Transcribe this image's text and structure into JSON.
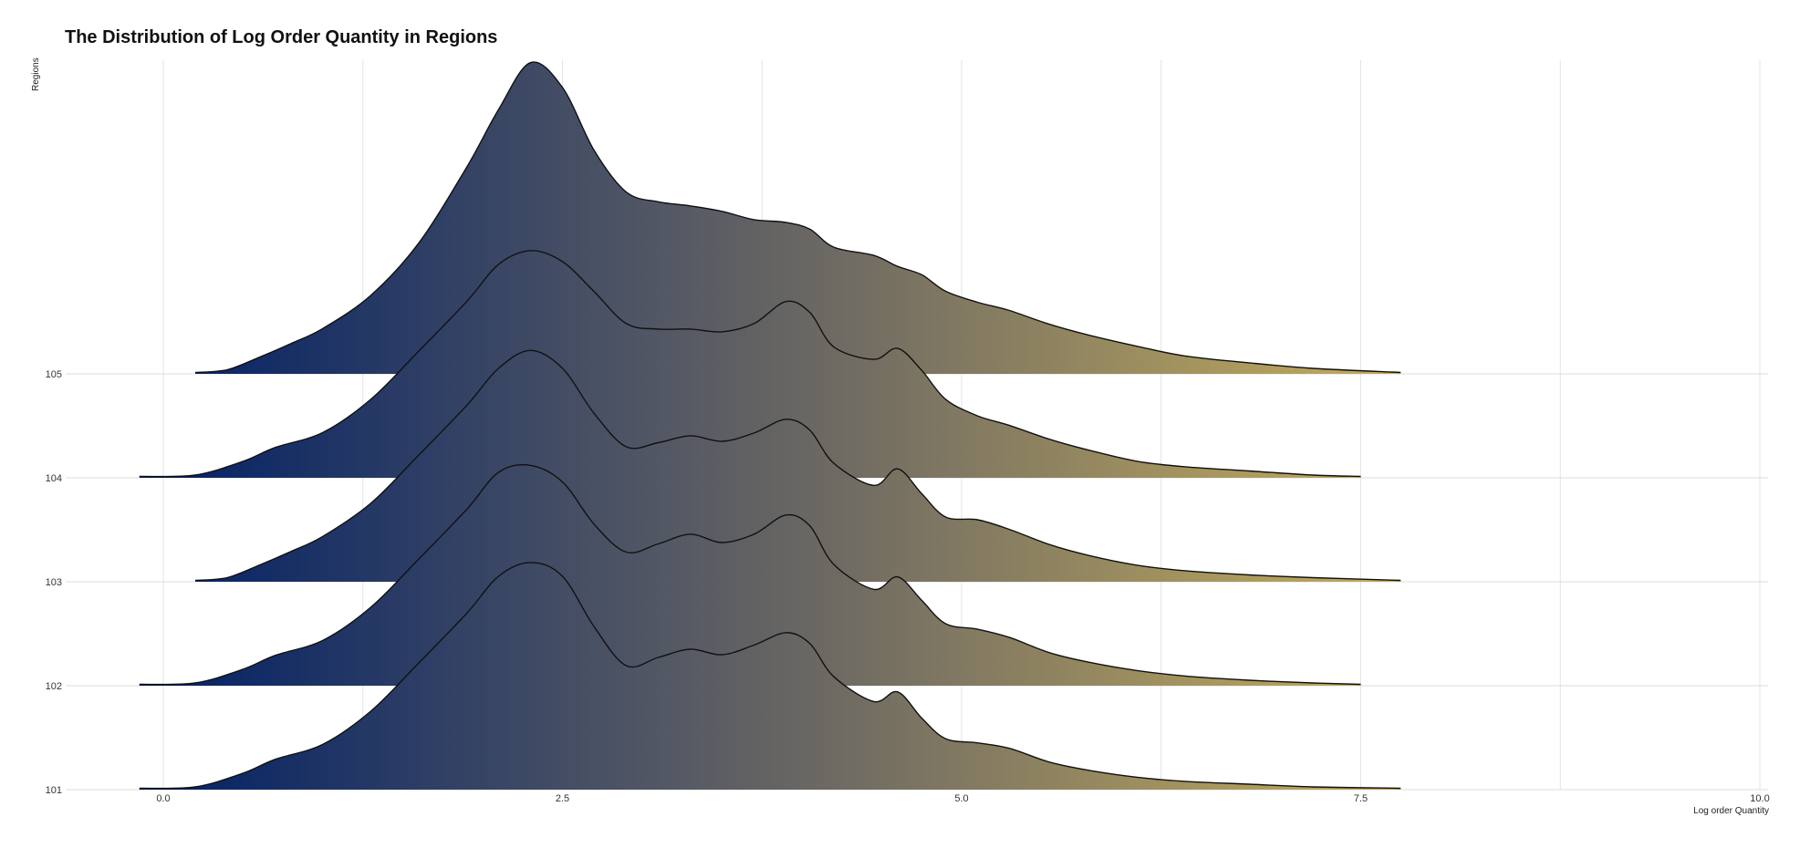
{
  "chart_data": {
    "type": "ridgeline",
    "title": "The Distribution of Log Order Quantity in Regions",
    "xlabel": "Log order Quantity",
    "ylabel": "Regions",
    "xlim": [
      -0.8,
      10.0
    ],
    "x_ticks": [
      "0.0",
      "2.5",
      "5.0",
      "7.5",
      "10.0"
    ],
    "grid": true,
    "fill_gradient": [
      "#001f66",
      "#6e6a63",
      "#c4ad5c"
    ],
    "categories": [
      "101",
      "102",
      "103",
      "104",
      "105"
    ],
    "series": [
      {
        "name": "101",
        "x": [
          -0.15,
          0.2,
          0.5,
          0.7,
          1.0,
          1.3,
          1.6,
          1.9,
          2.1,
          2.3,
          2.5,
          2.7,
          2.9,
          3.1,
          3.3,
          3.5,
          3.7,
          3.9,
          4.05,
          4.2,
          4.45,
          4.6,
          4.75,
          4.9,
          5.1,
          5.3,
          5.55,
          5.8,
          6.1,
          6.4,
          6.8,
          7.2,
          7.75
        ],
        "density": [
          0.01,
          0.02,
          0.12,
          0.22,
          0.33,
          0.57,
          0.92,
          1.28,
          1.55,
          1.65,
          1.55,
          1.18,
          0.9,
          0.96,
          1.02,
          0.98,
          1.05,
          1.14,
          1.06,
          0.82,
          0.64,
          0.71,
          0.52,
          0.37,
          0.34,
          0.3,
          0.2,
          0.14,
          0.09,
          0.06,
          0.04,
          0.02,
          0.01
        ]
      },
      {
        "name": "102",
        "x": [
          -0.15,
          0.2,
          0.5,
          0.7,
          1.0,
          1.3,
          1.6,
          1.9,
          2.1,
          2.3,
          2.5,
          2.7,
          2.9,
          3.1,
          3.3,
          3.5,
          3.7,
          3.9,
          4.05,
          4.2,
          4.45,
          4.6,
          4.75,
          4.9,
          5.1,
          5.3,
          5.55,
          5.8,
          6.1,
          6.4,
          6.8,
          7.2,
          7.5
        ],
        "density": [
          0.01,
          0.02,
          0.12,
          0.22,
          0.33,
          0.57,
          0.92,
          1.28,
          1.55,
          1.6,
          1.48,
          1.17,
          0.97,
          1.03,
          1.1,
          1.04,
          1.1,
          1.24,
          1.16,
          0.88,
          0.7,
          0.79,
          0.62,
          0.45,
          0.41,
          0.35,
          0.24,
          0.17,
          0.11,
          0.07,
          0.04,
          0.02,
          0.01
        ]
      },
      {
        "name": "103",
        "x": [
          0.2,
          0.4,
          0.6,
          0.8,
          1.0,
          1.3,
          1.6,
          1.9,
          2.1,
          2.3,
          2.5,
          2.7,
          2.9,
          3.1,
          3.3,
          3.5,
          3.7,
          3.9,
          4.05,
          4.2,
          4.45,
          4.6,
          4.75,
          4.9,
          5.1,
          5.3,
          5.55,
          5.8,
          6.1,
          6.4,
          6.8,
          7.2,
          7.75
        ],
        "density": [
          0.01,
          0.03,
          0.12,
          0.22,
          0.33,
          0.57,
          0.92,
          1.28,
          1.55,
          1.68,
          1.55,
          1.22,
          0.98,
          1.01,
          1.06,
          1.02,
          1.08,
          1.18,
          1.1,
          0.86,
          0.7,
          0.82,
          0.64,
          0.47,
          0.45,
          0.38,
          0.27,
          0.19,
          0.12,
          0.08,
          0.05,
          0.03,
          0.01
        ]
      },
      {
        "name": "104",
        "x": [
          -0.15,
          0.2,
          0.5,
          0.7,
          1.0,
          1.3,
          1.6,
          1.9,
          2.1,
          2.3,
          2.5,
          2.7,
          2.9,
          3.1,
          3.3,
          3.5,
          3.7,
          3.9,
          4.05,
          4.2,
          4.45,
          4.6,
          4.75,
          4.9,
          5.1,
          5.3,
          5.55,
          5.8,
          6.1,
          6.4,
          6.8,
          7.2,
          7.5
        ],
        "density": [
          0.01,
          0.02,
          0.12,
          0.22,
          0.33,
          0.57,
          0.92,
          1.28,
          1.55,
          1.65,
          1.57,
          1.35,
          1.12,
          1.08,
          1.08,
          1.06,
          1.12,
          1.28,
          1.2,
          0.95,
          0.86,
          0.94,
          0.78,
          0.57,
          0.45,
          0.38,
          0.28,
          0.2,
          0.12,
          0.08,
          0.05,
          0.02,
          0.01
        ]
      },
      {
        "name": "105",
        "x": [
          0.2,
          0.4,
          0.6,
          0.8,
          1.0,
          1.3,
          1.6,
          1.9,
          2.1,
          2.3,
          2.5,
          2.7,
          2.9,
          3.1,
          3.3,
          3.5,
          3.7,
          3.9,
          4.05,
          4.2,
          4.45,
          4.6,
          4.75,
          4.9,
          5.1,
          5.3,
          5.55,
          5.8,
          6.1,
          6.4,
          6.8,
          7.2,
          7.75
        ],
        "density": [
          0.01,
          0.03,
          0.12,
          0.22,
          0.33,
          0.57,
          0.95,
          1.5,
          1.92,
          2.26,
          2.08,
          1.62,
          1.32,
          1.25,
          1.22,
          1.18,
          1.12,
          1.1,
          1.05,
          0.92,
          0.86,
          0.78,
          0.72,
          0.6,
          0.52,
          0.46,
          0.36,
          0.28,
          0.2,
          0.13,
          0.08,
          0.04,
          0.01
        ]
      }
    ]
  }
}
